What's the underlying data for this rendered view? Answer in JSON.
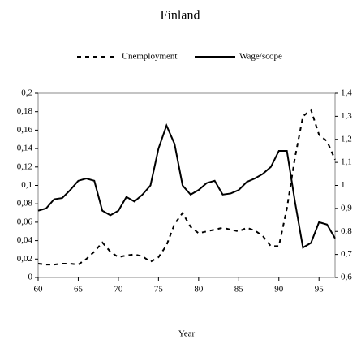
{
  "chart_data": {
    "type": "line",
    "title": "Finland",
    "x_label": "Year",
    "x": [
      60,
      61,
      62,
      63,
      64,
      65,
      66,
      67,
      68,
      69,
      70,
      71,
      72,
      73,
      74,
      75,
      76,
      77,
      78,
      79,
      80,
      81,
      82,
      83,
      84,
      85,
      86,
      87,
      88,
      89,
      90,
      91,
      92,
      93,
      94,
      95,
      96,
      97
    ],
    "series": [
      {
        "name": "Unemployment",
        "color": "#000000",
        "dash": "dashed",
        "values": [
          0.015,
          0.014,
          0.014,
          0.015,
          0.015,
          0.014,
          0.02,
          0.028,
          0.038,
          0.028,
          0.022,
          0.024,
          0.025,
          0.023,
          0.017,
          0.022,
          0.035,
          0.058,
          0.07,
          0.055,
          0.048,
          0.05,
          0.052,
          0.054,
          0.052,
          0.05,
          0.054,
          0.051,
          0.045,
          0.034,
          0.034,
          0.075,
          0.13,
          0.175,
          0.182,
          0.155,
          0.148,
          0.128
        ]
      },
      {
        "name": "Wage/scope",
        "color": "#000000",
        "dash": "solid",
        "axis": "y2",
        "values": [
          0.89,
          0.9,
          0.94,
          0.945,
          0.98,
          1.02,
          1.03,
          1.02,
          0.89,
          0.87,
          0.89,
          0.95,
          0.93,
          0.96,
          1.0,
          1.16,
          1.26,
          1.18,
          1.0,
          0.96,
          0.98,
          1.01,
          1.02,
          0.96,
          0.965,
          0.98,
          1.015,
          1.03,
          1.05,
          1.08,
          1.15,
          1.15,
          0.93,
          0.73,
          0.75,
          0.84,
          0.83,
          0.77
        ]
      }
    ],
    "xlim": [
      60,
      97
    ],
    "xticks": [
      60,
      65,
      70,
      75,
      80,
      85,
      90,
      95
    ],
    "ylim": [
      0,
      0.2
    ],
    "yticks": [
      0,
      {
        "value": 0.02,
        "label": "0,02"
      },
      {
        "value": 0.04,
        "label": "0,04"
      },
      {
        "value": 0.06,
        "label": "0,06"
      },
      {
        "value": 0.08,
        "label": "0,08"
      },
      {
        "value": 0.1,
        "label": "0,1"
      },
      {
        "value": 0.12,
        "label": "0,12"
      },
      {
        "value": 0.14,
        "label": "0,14"
      },
      {
        "value": 0.16,
        "label": "0,16"
      },
      {
        "value": 0.18,
        "label": "0,18"
      },
      {
        "value": 0.2,
        "label": "0,2"
      }
    ],
    "y2lim": [
      0.6,
      1.4
    ],
    "y2ticks": [
      {
        "value": 0.6,
        "label": "0,6"
      },
      {
        "value": 0.7,
        "label": "0,7"
      },
      {
        "value": 0.8,
        "label": "0,8"
      },
      {
        "value": 0.9,
        "label": "0,9"
      },
      1,
      {
        "value": 1.1,
        "label": "1,1"
      },
      {
        "value": 1.2,
        "label": "1,2"
      },
      {
        "value": 1.3,
        "label": "1,3"
      },
      {
        "value": 1.4,
        "label": "1,4"
      }
    ],
    "grid": false,
    "legend": "top"
  }
}
